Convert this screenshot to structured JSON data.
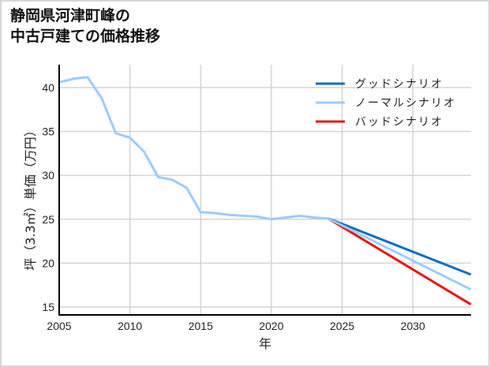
{
  "title": {
    "line1": "静岡県河津町峰の",
    "line2": "中古戸建ての価格推移"
  },
  "chart_data": {
    "type": "line",
    "title": "静岡県河津町峰の中古戸建ての価格推移",
    "xlabel": "年",
    "ylabel": "坪（3.3㎡）単価（万円）",
    "xlim": [
      2005,
      2034.1
    ],
    "ylim": [
      14.1,
      42.6
    ],
    "x_ticks": [
      2005,
      2010,
      2015,
      2020,
      2025,
      2030
    ],
    "y_ticks": [
      15,
      20,
      25,
      30,
      35,
      40
    ],
    "grid": true,
    "legend_position": "upper right",
    "series": [
      {
        "name": "グッドシナリオ",
        "color": "#0a6fc2",
        "x": [
          2024,
          2034.1
        ],
        "values": [
          25.1,
          18.7
        ]
      },
      {
        "name": "ノーマルシナリオ",
        "color": "#99ccff",
        "x": [
          2005,
          2006,
          2007,
          2008,
          2009,
          2010,
          2011,
          2012,
          2013,
          2014,
          2015,
          2016,
          2017,
          2018,
          2019,
          2020,
          2021,
          2022,
          2023,
          2024,
          2034.1
        ],
        "values": [
          40.6,
          41.0,
          41.2,
          38.8,
          34.8,
          34.3,
          32.7,
          29.8,
          29.5,
          28.6,
          25.8,
          25.7,
          25.5,
          25.4,
          25.3,
          25.0,
          25.2,
          25.4,
          25.2,
          25.1,
          17.0
        ]
      },
      {
        "name": "バッドシナリオ",
        "color": "#ee1111",
        "x": [
          2024,
          2034.1
        ],
        "values": [
          25.1,
          15.3
        ]
      }
    ]
  },
  "legend": {
    "items": [
      {
        "label": "グッドシナリオ",
        "color": "#0a6fc2"
      },
      {
        "label": "ノーマルシナリオ",
        "color": "#99ccff"
      },
      {
        "label": "バッドシナリオ",
        "color": "#ee1111"
      }
    ]
  },
  "axes": {
    "x_label": "年",
    "y_label": "坪（3.3㎡）単価（万円）",
    "x_tick_labels": [
      "2005",
      "2010",
      "2015",
      "2020",
      "2025",
      "2030"
    ],
    "y_tick_labels": [
      "15",
      "20",
      "25",
      "30",
      "35",
      "40"
    ]
  }
}
